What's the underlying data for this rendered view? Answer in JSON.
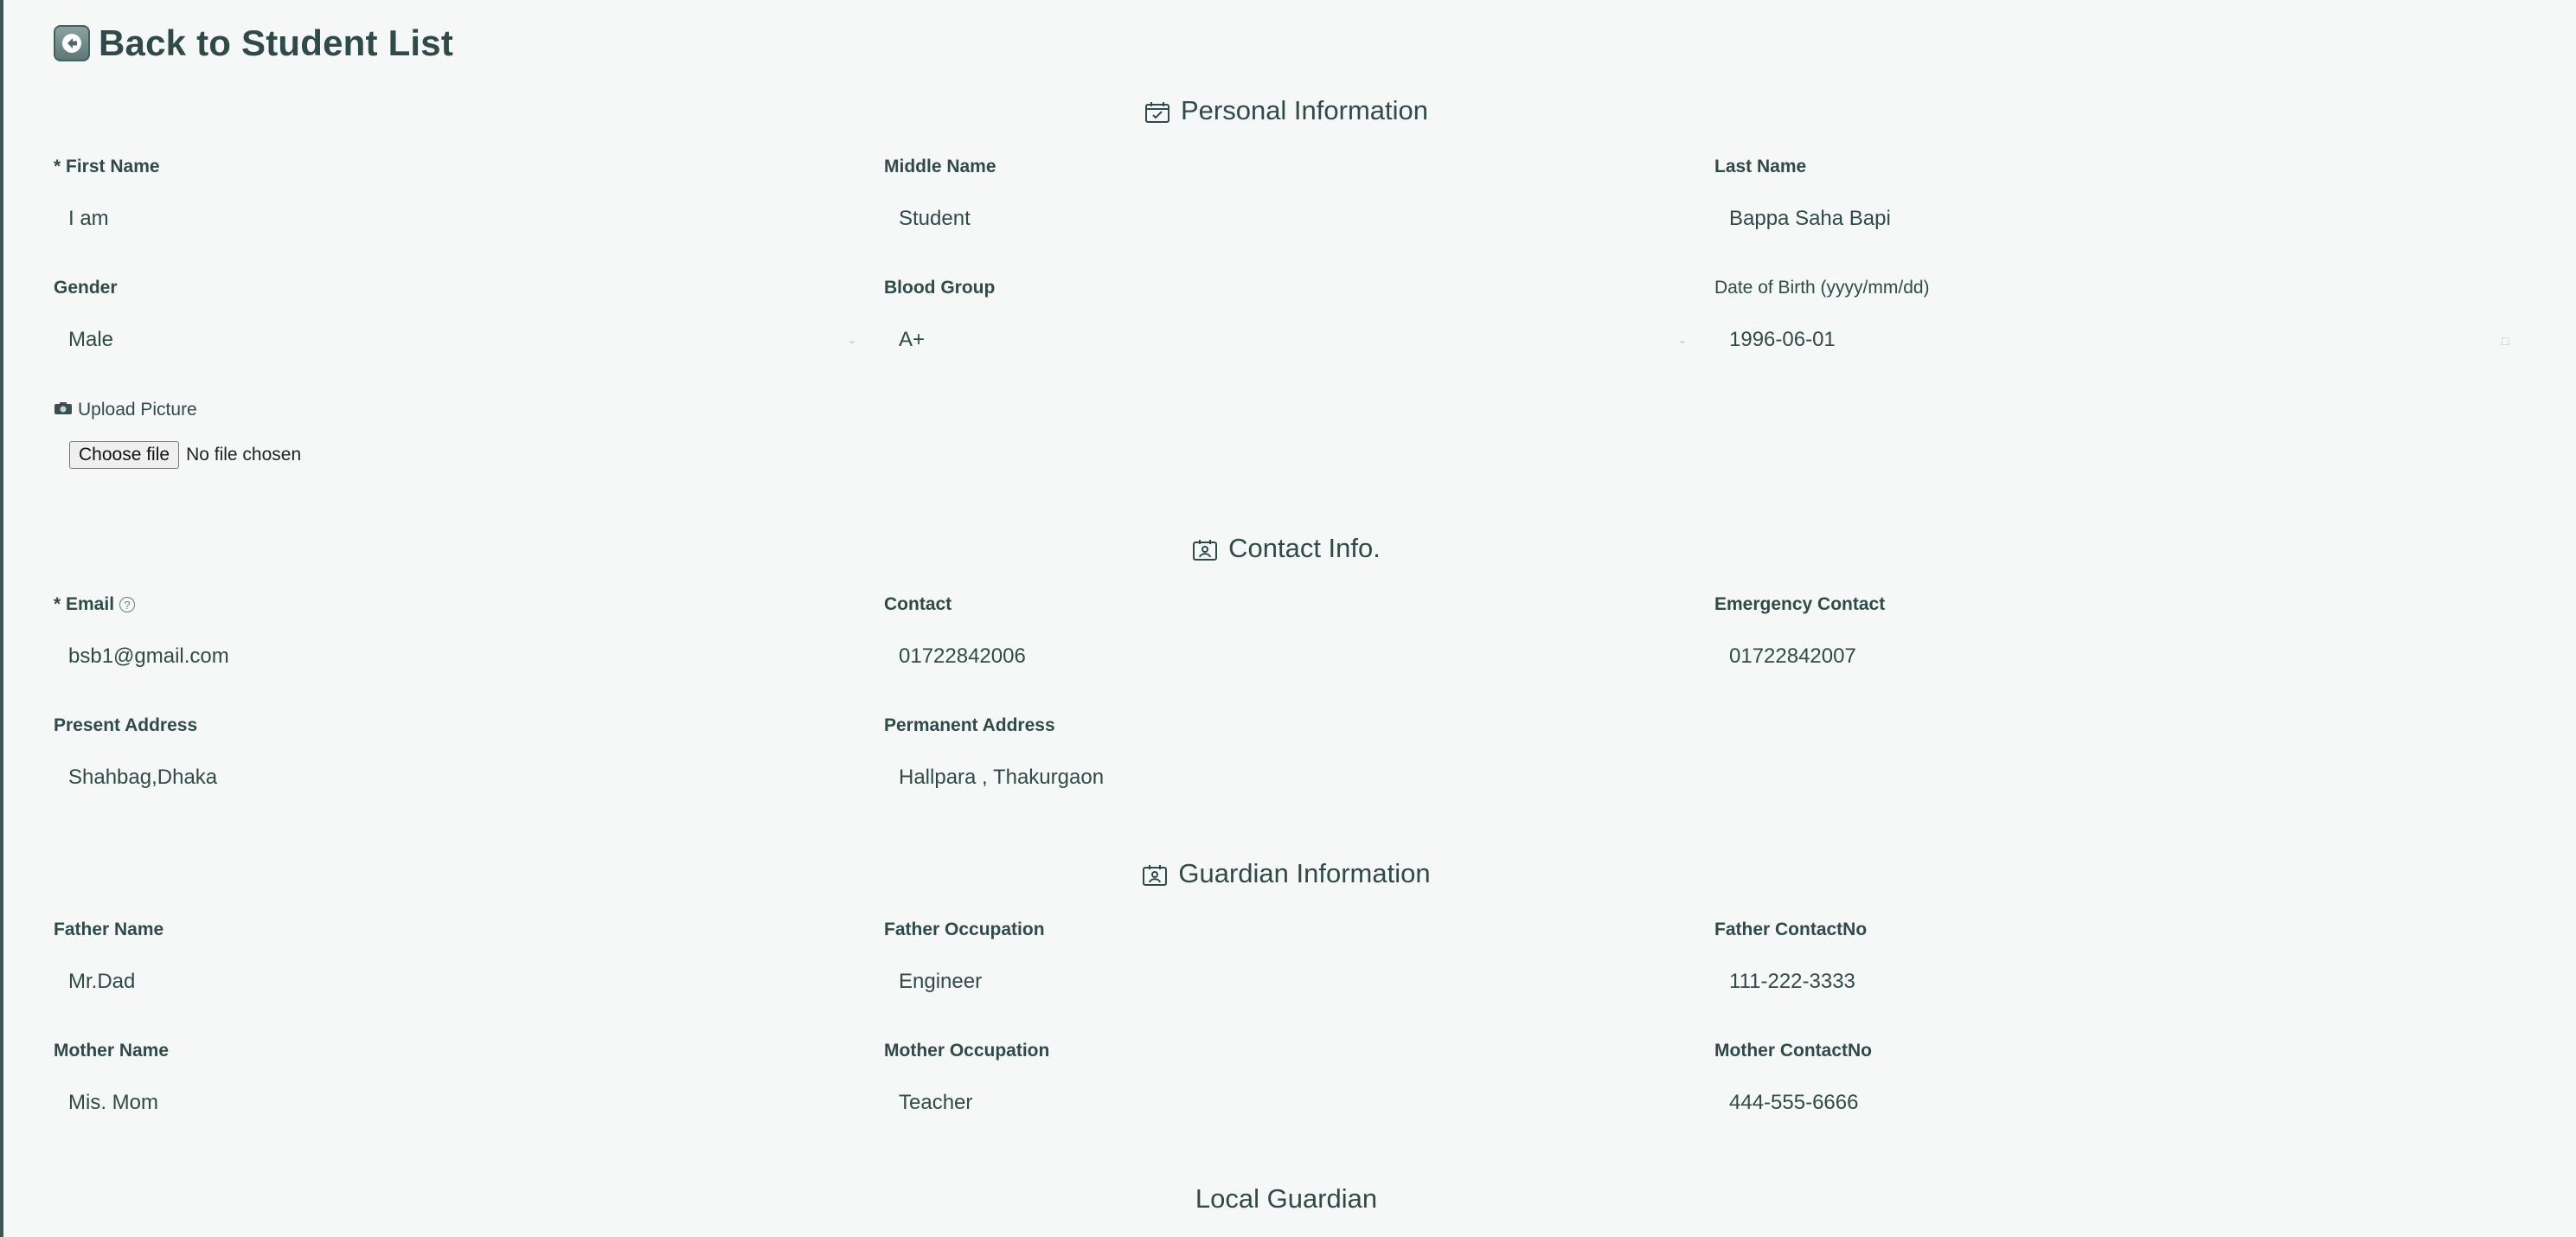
{
  "back": {
    "label": "Back to Student List"
  },
  "sections": {
    "personal": "Personal Information",
    "contact": "Contact Info.",
    "guardian": "Guardian Information",
    "local_guardian": "Local Guardian"
  },
  "personal": {
    "first_name": {
      "label": "* First Name",
      "value": "I am"
    },
    "middle_name": {
      "label": "Middle Name",
      "value": "Student"
    },
    "last_name": {
      "label": "Last Name",
      "value": "Bappa Saha Bapi"
    },
    "gender": {
      "label": "Gender",
      "value": "Male"
    },
    "blood_group": {
      "label": "Blood Group",
      "value": "A+"
    },
    "dob": {
      "label": "Date of Birth (yyyy/mm/dd)",
      "value": "1996-06-01"
    },
    "upload": {
      "label": "Upload Picture",
      "button": "Choose file",
      "status": "No file chosen"
    }
  },
  "contact": {
    "email": {
      "label": "* Email",
      "value": "bsb1@gmail.com"
    },
    "contact": {
      "label": "Contact",
      "value": "01722842006"
    },
    "emergency": {
      "label": "Emergency Contact",
      "value": "01722842007"
    },
    "present_address": {
      "label": "Present Address",
      "value": "Shahbag,Dhaka"
    },
    "permanent_address": {
      "label": "Permanent Address",
      "value": "Hallpara , Thakurgaon"
    }
  },
  "guardian": {
    "father_name": {
      "label": "Father Name",
      "value": "Mr.Dad"
    },
    "father_occupation": {
      "label": "Father Occupation",
      "value": "Engineer"
    },
    "father_contact": {
      "label": "Father ContactNo",
      "value": "111-222-3333"
    },
    "mother_name": {
      "label": "Mother Name",
      "value": "Mis. Mom"
    },
    "mother_occupation": {
      "label": "Mother Occupation",
      "value": "Teacher"
    },
    "mother_contact": {
      "label": "Mother ContactNo",
      "value": "444-555-6666"
    }
  }
}
